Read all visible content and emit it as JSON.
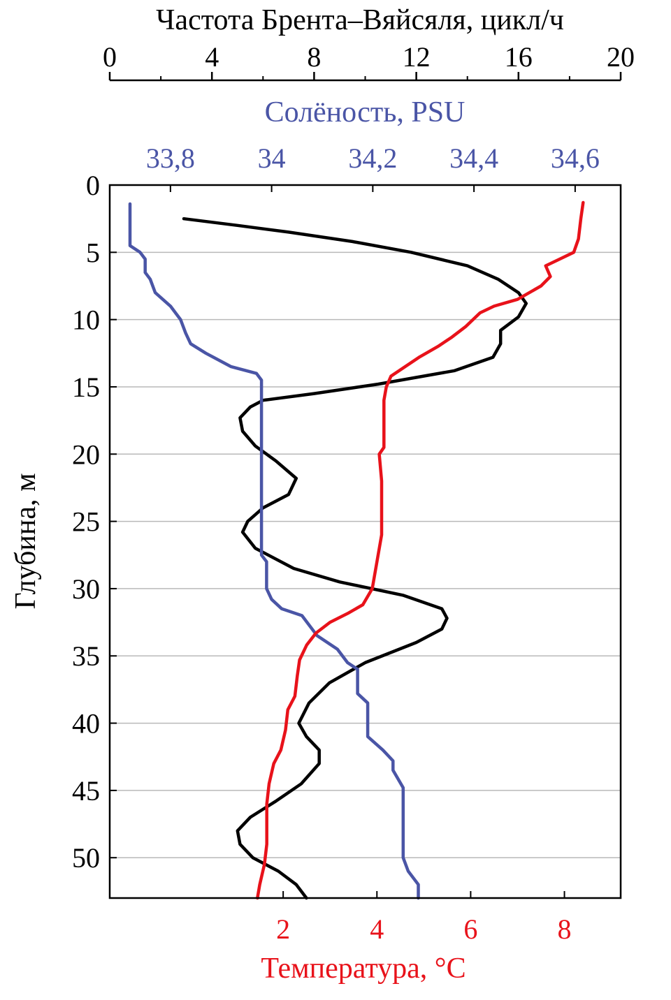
{
  "chart_data": {
    "type": "line",
    "ylabel": "Глубина, м",
    "grid": true,
    "axes": {
      "depth": {
        "label": "Глубина, м",
        "range": [
          0,
          53
        ],
        "ticks": [
          0,
          5,
          10,
          15,
          20,
          25,
          30,
          35,
          40,
          45,
          50
        ],
        "inverted": true
      },
      "bv_frequency": {
        "label": "Частота Брента–Вяйсяля, цикл/ч",
        "range": [
          0,
          20
        ],
        "ticks": [
          0,
          4,
          8,
          12,
          16,
          20
        ],
        "color": "#000000"
      },
      "salinity": {
        "label": "Солёность, PSU",
        "range": [
          33.68,
          34.69
        ],
        "ticks": [
          33.8,
          34.0,
          34.2,
          34.4,
          34.6
        ],
        "tick_labels": [
          "33,8",
          "34",
          "34,2",
          "34,4",
          "34,6"
        ],
        "color": "#4a55a6"
      },
      "temperature": {
        "label": "Температура, °C",
        "range": [
          -1.7,
          9.2
        ],
        "ticks": [
          2,
          4,
          6,
          8
        ],
        "tick_labels": [
          "2",
          "4",
          "6",
          "8"
        ],
        "color": "#e8121a"
      }
    },
    "series": [
      {
        "axis": "bv_frequency",
        "color": "#000000",
        "points": [
          [
            2.9,
            2.5
          ],
          [
            5.0,
            3.0
          ],
          [
            7.0,
            3.5
          ],
          [
            9.5,
            4.2
          ],
          [
            11.8,
            5.0
          ],
          [
            14.0,
            6.0
          ],
          [
            15.2,
            7.0
          ],
          [
            16.0,
            8.0
          ],
          [
            16.3,
            8.8
          ],
          [
            16.0,
            9.8
          ],
          [
            15.3,
            10.8
          ],
          [
            15.3,
            11.8
          ],
          [
            15.0,
            12.8
          ],
          [
            13.5,
            13.8
          ],
          [
            10.5,
            14.8
          ],
          [
            8.0,
            15.5
          ],
          [
            6.0,
            16.0
          ],
          [
            5.5,
            16.5
          ],
          [
            5.1,
            17.3
          ],
          [
            5.2,
            18.3
          ],
          [
            5.7,
            19.4
          ],
          [
            6.5,
            20.5
          ],
          [
            7.3,
            21.8
          ],
          [
            7.0,
            23.0
          ],
          [
            6.0,
            24.0
          ],
          [
            5.4,
            25.0
          ],
          [
            5.2,
            25.8
          ],
          [
            5.7,
            27.0
          ],
          [
            7.2,
            28.5
          ],
          [
            9.0,
            29.5
          ],
          [
            11.5,
            30.5
          ],
          [
            13.0,
            31.5
          ],
          [
            13.2,
            32.2
          ],
          [
            13.0,
            33.0
          ],
          [
            12.0,
            34.0
          ],
          [
            10.0,
            35.5
          ],
          [
            8.6,
            37.0
          ],
          [
            7.8,
            38.5
          ],
          [
            7.4,
            40.0
          ],
          [
            7.7,
            41.0
          ],
          [
            8.2,
            42.0
          ],
          [
            8.2,
            43.0
          ],
          [
            7.5,
            44.5
          ],
          [
            6.5,
            45.8
          ],
          [
            5.5,
            47.0
          ],
          [
            5.0,
            48.0
          ],
          [
            5.1,
            49.0
          ],
          [
            5.6,
            50.0
          ],
          [
            6.6,
            51.0
          ],
          [
            7.3,
            52.0
          ],
          [
            7.7,
            53.0
          ]
        ]
      },
      {
        "axis": "salinity",
        "color": "#4a55a6",
        "points": [
          [
            33.72,
            1.4
          ],
          [
            33.72,
            4.5
          ],
          [
            33.74,
            5.0
          ],
          [
            33.75,
            5.5
          ],
          [
            33.75,
            6.5
          ],
          [
            33.76,
            7.0
          ],
          [
            33.77,
            8.0
          ],
          [
            33.8,
            9.0
          ],
          [
            33.82,
            10.0
          ],
          [
            33.83,
            11.0
          ],
          [
            33.84,
            11.8
          ],
          [
            33.87,
            12.5
          ],
          [
            33.92,
            13.5
          ],
          [
            33.97,
            14.0
          ],
          [
            33.98,
            14.5
          ],
          [
            33.98,
            27.5
          ],
          [
            33.99,
            28.0
          ],
          [
            33.99,
            30.0
          ],
          [
            34.0,
            30.8
          ],
          [
            34.02,
            31.5
          ],
          [
            34.06,
            32.0
          ],
          [
            34.09,
            33.5
          ],
          [
            34.13,
            34.5
          ],
          [
            34.15,
            35.5
          ],
          [
            34.17,
            36.0
          ],
          [
            34.17,
            37.8
          ],
          [
            34.19,
            38.5
          ],
          [
            34.19,
            41.0
          ],
          [
            34.22,
            42.0
          ],
          [
            34.24,
            42.8
          ],
          [
            34.24,
            43.5
          ],
          [
            34.26,
            44.8
          ],
          [
            34.26,
            50.0
          ],
          [
            34.27,
            51.0
          ],
          [
            34.29,
            52.0
          ],
          [
            34.29,
            53.0
          ]
        ]
      },
      {
        "axis": "temperature",
        "color": "#e8121a",
        "points": [
          [
            8.4,
            1.3
          ],
          [
            8.35,
            2.5
          ],
          [
            8.3,
            4.0
          ],
          [
            8.2,
            5.0
          ],
          [
            7.9,
            5.5
          ],
          [
            7.6,
            6.0
          ],
          [
            7.7,
            6.8
          ],
          [
            7.5,
            7.5
          ],
          [
            7.0,
            8.5
          ],
          [
            6.5,
            9.0
          ],
          [
            6.2,
            9.5
          ],
          [
            5.9,
            10.5
          ],
          [
            5.6,
            11.3
          ],
          [
            5.3,
            12.0
          ],
          [
            4.9,
            12.8
          ],
          [
            4.6,
            13.5
          ],
          [
            4.3,
            14.2
          ],
          [
            4.2,
            15.0
          ],
          [
            4.15,
            16.0
          ],
          [
            4.15,
            19.5
          ],
          [
            4.05,
            20.0
          ],
          [
            4.1,
            22.0
          ],
          [
            4.1,
            26.0
          ],
          [
            4.0,
            28.0
          ],
          [
            3.9,
            30.0
          ],
          [
            3.7,
            31.2
          ],
          [
            3.4,
            31.8
          ],
          [
            3.0,
            32.5
          ],
          [
            2.7,
            33.3
          ],
          [
            2.5,
            34.2
          ],
          [
            2.35,
            35.3
          ],
          [
            2.3,
            36.5
          ],
          [
            2.25,
            38.0
          ],
          [
            2.1,
            39.0
          ],
          [
            2.05,
            40.5
          ],
          [
            1.95,
            42.0
          ],
          [
            1.8,
            43.0
          ],
          [
            1.7,
            44.5
          ],
          [
            1.65,
            46.0
          ],
          [
            1.65,
            49.0
          ],
          [
            1.6,
            50.5
          ],
          [
            1.5,
            52.0
          ],
          [
            1.45,
            53.0
          ]
        ]
      }
    ]
  }
}
